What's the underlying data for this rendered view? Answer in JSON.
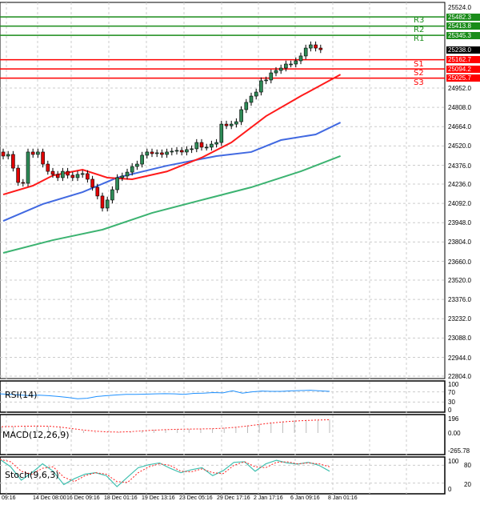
{
  "price_axis": [
    "25524.0",
    "24952.0",
    "24808.0",
    "24664.0",
    "24520.0",
    "24376.0",
    "24236.0",
    "24092.0",
    "23948.0",
    "23804.0",
    "23660.0",
    "23520.0",
    "23376.0",
    "23232.0",
    "23088.0",
    "22944.0",
    "22804.0"
  ],
  "levels": [
    {
      "name": "R3",
      "value": "25482.3",
      "price": 25482.3,
      "color": "#1a8c1a"
    },
    {
      "name": "R2",
      "value": "25413.8",
      "price": 25413.8,
      "color": "#1a8c1a"
    },
    {
      "name": "R1",
      "value": "25345.3",
      "price": 25345.3,
      "color": "#1a8c1a"
    },
    {
      "name": "S1",
      "value": "25162.7",
      "price": 25162.7,
      "color": "#ff0000"
    },
    {
      "name": "S2",
      "value": "25094.2",
      "price": 25094.2,
      "color": "#ff0000"
    },
    {
      "name": "S3",
      "value": "25025.7",
      "price": 25025.7,
      "color": "#ff0000"
    }
  ],
  "current_price": {
    "value": "25238.0",
    "price": 25238.0
  },
  "chart_data": {
    "type": "candlestick",
    "closes": [
      24445,
      24457,
      24355,
      24248,
      24242,
      24475,
      24457,
      24475,
      24385,
      24331,
      24308,
      24284,
      24331,
      24302,
      24284,
      24308,
      24314,
      24272,
      24212,
      24147,
      24057,
      24117,
      24194,
      24284,
      24296,
      24325,
      24367,
      24385,
      24451,
      24475,
      24463,
      24469,
      24457,
      24475,
      24481,
      24487,
      24475,
      24493,
      24499,
      24546,
      24511,
      24511,
      24534,
      24546,
      24683,
      24671,
      24683,
      24701,
      24791,
      24845,
      24892,
      24922,
      25006,
      25012,
      25065,
      25083,
      25101,
      25131,
      25131,
      25155,
      25191,
      25250,
      25274,
      25250,
      25238
    ],
    "ma_red": [
      [
        0,
        24158
      ],
      [
        6,
        24224
      ],
      [
        10,
        24300
      ],
      [
        16,
        24343
      ],
      [
        21,
        24284
      ],
      [
        26,
        24272
      ],
      [
        33,
        24330
      ],
      [
        40,
        24433
      ],
      [
        46,
        24546
      ],
      [
        53,
        24743
      ],
      [
        60,
        24892
      ],
      [
        68,
        25053
      ]
    ],
    "ma_blue": [
      [
        0,
        23961
      ],
      [
        8,
        24087
      ],
      [
        16,
        24176
      ],
      [
        23,
        24284
      ],
      [
        33,
        24373
      ],
      [
        43,
        24445
      ],
      [
        50,
        24475
      ],
      [
        56,
        24564
      ],
      [
        63,
        24606
      ],
      [
        68,
        24695
      ]
    ],
    "ma_green": [
      [
        0,
        23723
      ],
      [
        10,
        23818
      ],
      [
        20,
        23896
      ],
      [
        30,
        24021
      ],
      [
        40,
        24117
      ],
      [
        50,
        24212
      ],
      [
        60,
        24331
      ],
      [
        68,
        24445
      ]
    ],
    "ylim": [
      22804,
      25524
    ]
  },
  "time_axis": [
    "09:16",
    "14 Dec 08:00",
    "16 Dec 09:16",
    "18 Dec 01:16",
    "19 Dec 13:16",
    "23 Dec 05:16",
    "29 Dec 17:16",
    "2 Jan 17:16",
    "6 Jan 09:16",
    "8 Jan 01:16"
  ],
  "rsi": {
    "label": "RSI(14)",
    "axis": [
      "100",
      "70",
      "30",
      "0"
    ],
    "values": [
      62,
      60,
      58,
      55,
      57,
      55,
      52,
      48,
      43,
      45,
      52,
      55,
      58,
      60,
      60,
      61,
      62,
      63,
      62,
      60,
      64,
      65,
      67,
      66,
      74,
      65,
      70,
      73,
      72,
      72,
      74,
      75,
      76,
      74,
      72
    ],
    "color": "#1e90ff"
  },
  "macd": {
    "label": "MACD(12,26,9)",
    "axis": [
      "196",
      "0.00",
      "-265.78"
    ],
    "hist": [
      85,
      90,
      95,
      95,
      90,
      80,
      55,
      30,
      10,
      5,
      10,
      20,
      35,
      45,
      50,
      55,
      55,
      55,
      60,
      70,
      85,
      105,
      125,
      145,
      160,
      170,
      178,
      180,
      182
    ],
    "signal": [
      85,
      88,
      92,
      94,
      92,
      80,
      60,
      40,
      25,
      15,
      12,
      18,
      28,
      38,
      45,
      50,
      53,
      55,
      58,
      65,
      78,
      95,
      115,
      135,
      150,
      162,
      170,
      176,
      180
    ]
  },
  "stoch": {
    "label": "Stoch(9,6,3)",
    "axis": [
      "100",
      "80",
      "20",
      "0"
    ],
    "k": [
      100,
      75,
      30,
      55,
      85,
      60,
      15,
      35,
      50,
      55,
      45,
      8,
      40,
      72,
      82,
      88,
      70,
      55,
      65,
      72,
      45,
      62,
      90,
      92,
      60,
      85,
      97,
      88,
      84,
      90,
      80,
      60
    ],
    "d": [
      100,
      92,
      60,
      50,
      70,
      75,
      40,
      25,
      45,
      55,
      50,
      25,
      22,
      55,
      75,
      85,
      80,
      60,
      58,
      68,
      55,
      52,
      80,
      92,
      75,
      72,
      90,
      92,
      85,
      88,
      85,
      75
    ]
  }
}
